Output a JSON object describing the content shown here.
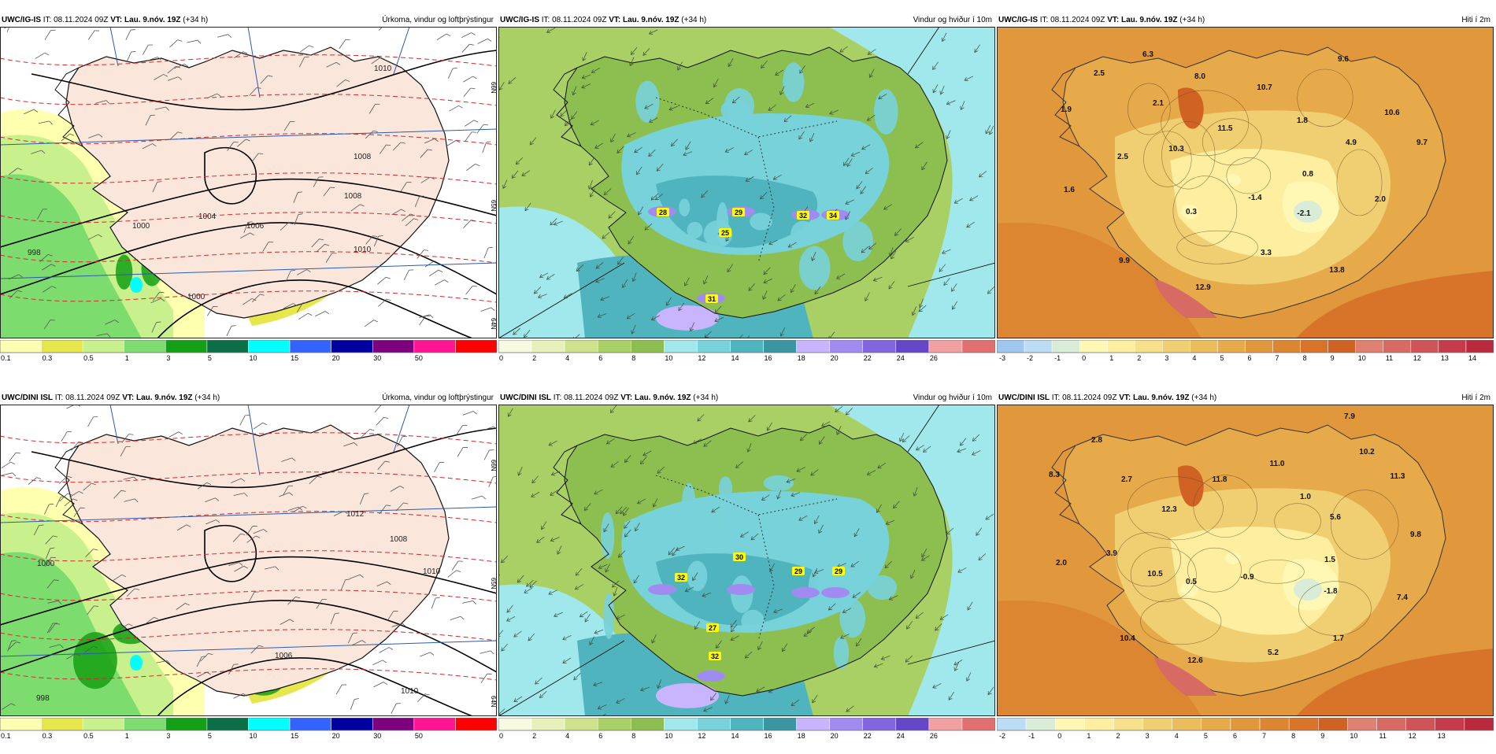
{
  "panels": [
    {
      "model": "UWC/IG-IS",
      "issue": "IT: 08.11.2024 09Z",
      "valid": "VT: Lau. 9.nóv. 19Z",
      "offset": "(+34 h)",
      "title": "Úrkoma, vindur og loftþrýstingur",
      "kind": "precip",
      "isobars": [
        "1010",
        "1008",
        "1008",
        "1006",
        "1004",
        "1000",
        "998",
        "1010",
        "1000"
      ],
      "lat_labels": [
        "66N",
        "65N",
        "64N"
      ],
      "scale_labels": [
        "0.1",
        "0.3",
        "0.5",
        "1",
        "3",
        "5",
        "10",
        "15",
        "20",
        "30",
        "50"
      ],
      "scale_colors": [
        "#ffffb0",
        "#e6e64d",
        "#c8f08c",
        "#7ddc6e",
        "#14a014",
        "#0a6e46",
        "#00ffff",
        "#3264ff",
        "#0000a0",
        "#7d007d",
        "#ff1493",
        "#ff0000"
      ]
    },
    {
      "model": "UWC/IG-IS",
      "issue": "IT: 08.11.2024 09Z",
      "valid": "VT: Lau. 9.nóv. 19Z",
      "offset": "(+34 h)",
      "title": "Vindur og hviður í 10m",
      "kind": "wind",
      "gusts": [
        "28",
        "29",
        "25",
        "32",
        "34",
        "31"
      ],
      "scale_labels": [
        "0",
        "2",
        "4",
        "6",
        "8",
        "10",
        "12",
        "14",
        "16",
        "18",
        "20",
        "22",
        "24",
        "26"
      ],
      "scale_colors": [
        "#f7f9e0",
        "#e6f0b8",
        "#cce38c",
        "#a8d064",
        "#8cbe50",
        "#a0e8ec",
        "#78d2da",
        "#50b4be",
        "#3a96a0",
        "#c8b4ff",
        "#a08cf0",
        "#8264dc",
        "#6446c8",
        "#f0a0a0",
        "#e07070"
      ]
    },
    {
      "model": "UWC/IG-IS",
      "issue": "IT: 08.11.2024 09Z",
      "valid": "VT: Lau. 9.nóv. 19Z",
      "offset": "(+34 h)",
      "title": "Hiti í 2m",
      "kind": "temp",
      "temps": [
        "6.3",
        "2.5",
        "8.0",
        "9.6",
        "10.7",
        "1.9",
        "2.1",
        "11.5",
        "1.8",
        "10.6",
        "10.3",
        "4.9",
        "9.7",
        "2.5",
        "0.8",
        "1.6",
        "-1.4",
        "2.0",
        "0.3",
        "-2.1",
        "3.3",
        "9.9",
        "13.8",
        "12.9"
      ],
      "scale_labels": [
        "-3",
        "-2",
        "-1",
        "0",
        "1",
        "2",
        "3",
        "4",
        "5",
        "6",
        "7",
        "8",
        "9",
        "10",
        "11",
        "12",
        "13",
        "14"
      ],
      "scale_colors": [
        "#9fc8f0",
        "#bcdcf5",
        "#d8ecd8",
        "#fff8b4",
        "#fdeea0",
        "#f7e08a",
        "#f0cf72",
        "#ebbd5c",
        "#e6aa4a",
        "#e1983c",
        "#dc8632",
        "#d7742a",
        "#d06224",
        "#e08070",
        "#d86a64",
        "#cf5458",
        "#c43c4a",
        "#b82a3c"
      ]
    },
    {
      "model": "UWC/DINI ISL",
      "issue": "IT: 08.11.2024 09Z",
      "valid": "VT: Lau. 9.nóv. 19Z",
      "offset": "(+34 h)",
      "title": "Úrkoma, vindur og loftþrýstingur",
      "kind": "precip",
      "isobars": [
        "1008",
        "1010",
        "1012",
        "1006",
        "1000",
        "998",
        "1010"
      ],
      "lat_labels": [
        "66N",
        "65N",
        "64N"
      ],
      "scale_labels": [
        "0.1",
        "0.3",
        "0.5",
        "1",
        "3",
        "5",
        "10",
        "15",
        "20",
        "30",
        "50"
      ],
      "scale_colors": [
        "#ffffb0",
        "#e6e64d",
        "#c8f08c",
        "#7ddc6e",
        "#14a014",
        "#0a6e46",
        "#00ffff",
        "#3264ff",
        "#0000a0",
        "#7d007d",
        "#ff1493",
        "#ff0000"
      ]
    },
    {
      "model": "UWC/DINI ISL",
      "issue": "IT: 08.11.2024 09Z",
      "valid": "VT: Lau. 9.nóv. 19Z",
      "offset": "(+34 h)",
      "title": "Vindur og hviður í 10m",
      "kind": "wind",
      "gusts": [
        "32",
        "30",
        "29",
        "29",
        "27",
        "32"
      ],
      "scale_labels": [
        "0",
        "2",
        "4",
        "6",
        "8",
        "10",
        "12",
        "14",
        "16",
        "18",
        "20",
        "22",
        "24",
        "26"
      ],
      "scale_colors": [
        "#f7f9e0",
        "#e6f0b8",
        "#cce38c",
        "#a8d064",
        "#8cbe50",
        "#a0e8ec",
        "#78d2da",
        "#50b4be",
        "#3a96a0",
        "#c8b4ff",
        "#a08cf0",
        "#8264dc",
        "#6446c8",
        "#f0a0a0",
        "#e07070"
      ]
    },
    {
      "model": "UWC/DINI ISL",
      "issue": "IT: 08.11.2024 09Z",
      "valid": "VT: Lau. 9.nóv. 19Z",
      "offset": "(+34 h)",
      "title": "Hiti í 2m",
      "kind": "temp",
      "temps": [
        "7.9",
        "2.8",
        "10.2",
        "11.0",
        "8.3",
        "2.7",
        "11.8",
        "11.3",
        "1.0",
        "12.3",
        "5.6",
        "9.8",
        "3.9",
        "1.5",
        "2.0",
        "10.5",
        "0.5",
        "-0.9",
        "-1.8",
        "7.4",
        "10.4",
        "1.7",
        "12.6",
        "5.2"
      ],
      "scale_labels": [
        "-2",
        "-1",
        "0",
        "1",
        "2",
        "3",
        "4",
        "5",
        "6",
        "7",
        "8",
        "9",
        "10",
        "11",
        "12",
        "13"
      ],
      "scale_colors": [
        "#bcdcf5",
        "#d8ecd8",
        "#fff8b4",
        "#fdeea0",
        "#f7e08a",
        "#f0cf72",
        "#ebbd5c",
        "#e6aa4a",
        "#e1983c",
        "#dc8632",
        "#d7742a",
        "#d06224",
        "#e08070",
        "#d86a64",
        "#cf5458",
        "#c43c4a",
        "#b82a3c"
      ]
    }
  ]
}
